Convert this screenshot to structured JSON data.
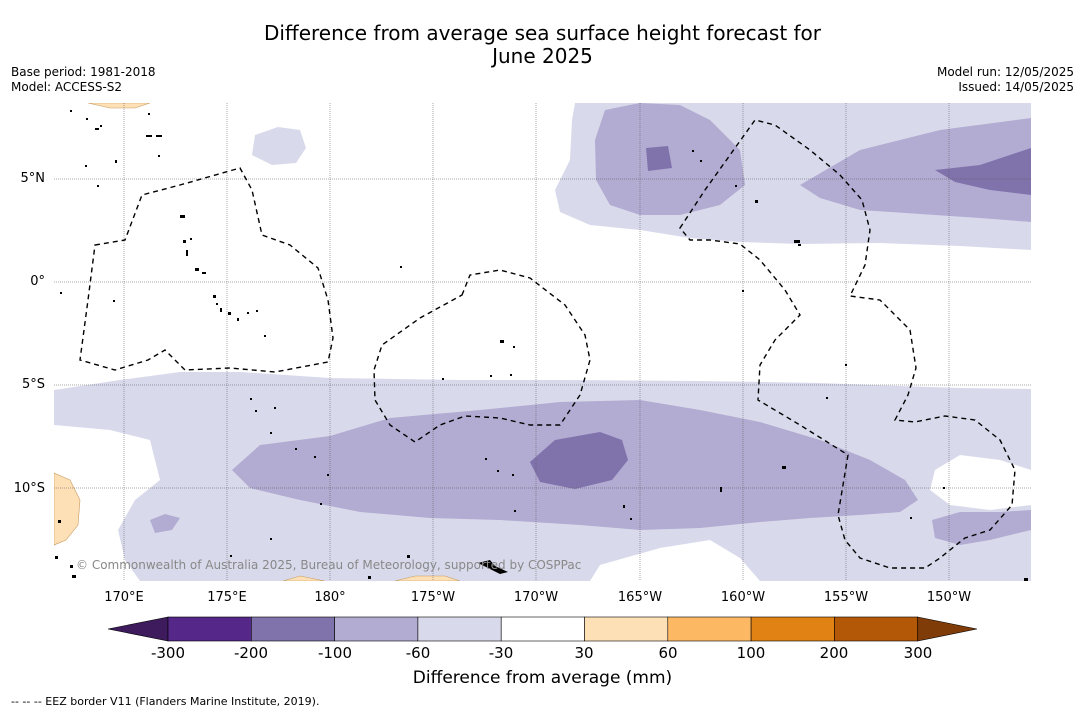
{
  "title_line1": "Difference from average sea surface height forecast for",
  "title_line2": "June 2025",
  "meta_left": {
    "base_period": "Base period: 1981-2018",
    "model": "Model: ACCESS-S2"
  },
  "meta_right": {
    "model_run": "Model run: 12/05/2025",
    "issued": "Issued: 14/05/2025"
  },
  "lat_labels": [
    "5°N",
    "0°",
    "5°S",
    "10°S"
  ],
  "lon_labels": [
    "170°E",
    "175°E",
    "180°",
    "175°W",
    "170°W",
    "165°W",
    "160°W",
    "155°W",
    "150°W"
  ],
  "copyright": "© Commonwealth of Australia 2025, Bureau of Meteorology, supported by COSPPac",
  "colorbar": {
    "title": "Difference from average (mm)",
    "ticks": [
      "-300",
      "-200",
      "-100",
      "-60",
      "-30",
      "30",
      "60",
      "100",
      "200",
      "300"
    ],
    "colors": [
      "#3d1b5c",
      "#542788",
      "#8073ac",
      "#b2abd2",
      "#d8daeb",
      "#ffffff",
      "#fee0b6",
      "#fdb863",
      "#e08214",
      "#b35806",
      "#7f3b08"
    ]
  },
  "footnote": "--  --  -- EEZ border V11 (Flanders Marine Institute, 2019)."
}
